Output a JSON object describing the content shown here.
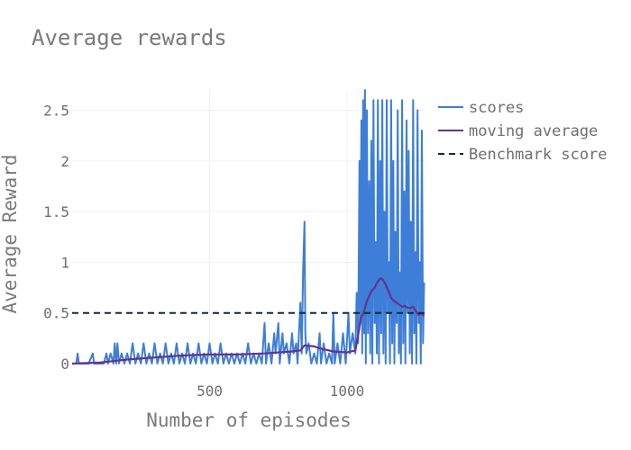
{
  "chart_data": {
    "type": "line",
    "title": "Average rewards",
    "xlabel": "Number of episodes",
    "ylabel": "Average Reward",
    "xlim": [
      0,
      1285
    ],
    "ylim": [
      0,
      2.7
    ],
    "x_ticks": [
      500,
      1000
    ],
    "y_ticks": [
      0,
      0.5,
      1,
      1.5,
      2,
      2.5
    ],
    "y_tick_labels": [
      "0",
      "0.5",
      "1",
      "1.5",
      "2",
      "2.5"
    ],
    "grid": true,
    "legend_position": "top-right",
    "series": [
      {
        "name": "scores",
        "color": "#3d7ed8",
        "style": "solid",
        "points": [
          [
            0,
            0
          ],
          [
            15,
            0
          ],
          [
            20,
            0.1
          ],
          [
            25,
            0
          ],
          [
            60,
            0
          ],
          [
            75,
            0.1
          ],
          [
            80,
            0
          ],
          [
            115,
            0
          ],
          [
            125,
            0.1
          ],
          [
            130,
            0
          ],
          [
            140,
            0.1
          ],
          [
            150,
            0
          ],
          [
            155,
            0.2
          ],
          [
            160,
            0
          ],
          [
            165,
            0.2
          ],
          [
            170,
            0
          ],
          [
            180,
            0.1
          ],
          [
            190,
            0
          ],
          [
            200,
            0.1
          ],
          [
            210,
            0
          ],
          [
            220,
            0.2
          ],
          [
            230,
            0
          ],
          [
            240,
            0.1
          ],
          [
            250,
            0
          ],
          [
            260,
            0.2
          ],
          [
            270,
            0
          ],
          [
            280,
            0.1
          ],
          [
            290,
            0
          ],
          [
            300,
            0.2
          ],
          [
            310,
            0
          ],
          [
            320,
            0.1
          ],
          [
            330,
            0
          ],
          [
            340,
            0.2
          ],
          [
            350,
            0
          ],
          [
            360,
            0.1
          ],
          [
            370,
            0
          ],
          [
            380,
            0.2
          ],
          [
            390,
            0
          ],
          [
            400,
            0.1
          ],
          [
            410,
            0
          ],
          [
            420,
            0.2
          ],
          [
            430,
            0
          ],
          [
            440,
            0.1
          ],
          [
            450,
            0
          ],
          [
            460,
            0.2
          ],
          [
            470,
            0
          ],
          [
            480,
            0.1
          ],
          [
            490,
            0
          ],
          [
            500,
            0.2
          ],
          [
            510,
            0
          ],
          [
            520,
            0.1
          ],
          [
            530,
            0
          ],
          [
            540,
            0.2
          ],
          [
            550,
            0
          ],
          [
            560,
            0.1
          ],
          [
            570,
            0
          ],
          [
            580,
            0.1
          ],
          [
            590,
            0
          ],
          [
            600,
            0.1
          ],
          [
            610,
            0
          ],
          [
            620,
            0.1
          ],
          [
            630,
            0
          ],
          [
            640,
            0.2
          ],
          [
            650,
            0
          ],
          [
            660,
            0.1
          ],
          [
            670,
            0
          ],
          [
            680,
            0.1
          ],
          [
            690,
            0
          ],
          [
            700,
            0.4
          ],
          [
            705,
            0
          ],
          [
            715,
            0.2
          ],
          [
            725,
            0
          ],
          [
            735,
            0.3
          ],
          [
            740,
            0.1
          ],
          [
            750,
            0.4
          ],
          [
            755,
            0
          ],
          [
            765,
            0.3
          ],
          [
            770,
            0.1
          ],
          [
            780,
            0.2
          ],
          [
            790,
            0
          ],
          [
            800,
            0.3
          ],
          [
            805,
            0.1
          ],
          [
            815,
            0.2
          ],
          [
            820,
            0
          ],
          [
            830,
            0.6
          ],
          [
            835,
            0.1
          ],
          [
            840,
            0.9
          ],
          [
            845,
            1.4
          ],
          [
            848,
            0.3
          ],
          [
            852,
            0.1
          ],
          [
            860,
            0.2
          ],
          [
            870,
            0
          ],
          [
            880,
            0.1
          ],
          [
            890,
            0
          ],
          [
            900,
            0.3
          ],
          [
            905,
            0
          ],
          [
            915,
            0.2
          ],
          [
            925,
            0
          ],
          [
            935,
            0.1
          ],
          [
            945,
            0
          ],
          [
            950,
            0.5
          ],
          [
            955,
            0
          ],
          [
            965,
            0.2
          ],
          [
            975,
            0
          ],
          [
            985,
            0.3
          ],
          [
            995,
            0
          ],
          [
            1005,
            0.5
          ],
          [
            1010,
            0.1
          ],
          [
            1020,
            0.3
          ],
          [
            1030,
            0.1
          ],
          [
            1035,
            0.7
          ],
          [
            1040,
            0.2
          ],
          [
            1045,
            2.0
          ],
          [
            1048,
            0.4
          ],
          [
            1052,
            2.4
          ],
          [
            1055,
            0.1
          ],
          [
            1058,
            2.6
          ],
          [
            1062,
            0.3
          ],
          [
            1065,
            2.7
          ],
          [
            1068,
            0
          ],
          [
            1072,
            2.5
          ],
          [
            1076,
            0.3
          ],
          [
            1080,
            1.8
          ],
          [
            1084,
            0.1
          ],
          [
            1088,
            2.2
          ],
          [
            1092,
            0
          ],
          [
            1096,
            2.6
          ],
          [
            1100,
            0.4
          ],
          [
            1104,
            1.2
          ],
          [
            1108,
            0.1
          ],
          [
            1112,
            2.6
          ],
          [
            1116,
            0
          ],
          [
            1120,
            2.0
          ],
          [
            1124,
            0.3
          ],
          [
            1128,
            2.6
          ],
          [
            1132,
            0.1
          ],
          [
            1136,
            1.5
          ],
          [
            1140,
            0
          ],
          [
            1144,
            2.6
          ],
          [
            1148,
            0.5
          ],
          [
            1152,
            1.0
          ],
          [
            1156,
            0
          ],
          [
            1160,
            2.6
          ],
          [
            1164,
            0.2
          ],
          [
            1168,
            2.0
          ],
          [
            1172,
            0
          ],
          [
            1176,
            1.3
          ],
          [
            1180,
            0.4
          ],
          [
            1184,
            2.5
          ],
          [
            1188,
            0.1
          ],
          [
            1192,
            0.9
          ],
          [
            1196,
            0
          ],
          [
            1200,
            2.6
          ],
          [
            1204,
            0.2
          ],
          [
            1208,
            1.7
          ],
          [
            1212,
            0
          ],
          [
            1216,
            2.4
          ],
          [
            1220,
            0.5
          ],
          [
            1224,
            2.1
          ],
          [
            1228,
            0.1
          ],
          [
            1232,
            1.4
          ],
          [
            1236,
            0
          ],
          [
            1240,
            2.6
          ],
          [
            1244,
            0.3
          ],
          [
            1248,
            1.1
          ],
          [
            1252,
            0
          ],
          [
            1256,
            2.5
          ],
          [
            1260,
            0.4
          ],
          [
            1264,
            1.0
          ],
          [
            1268,
            0
          ],
          [
            1272,
            2.3
          ],
          [
            1276,
            0.2
          ],
          [
            1280,
            0.8
          ]
        ]
      },
      {
        "name": "moving average",
        "color": "#6a2f8f",
        "style": "solid",
        "points": [
          [
            0,
            0
          ],
          [
            100,
            0.01
          ],
          [
            200,
            0.04
          ],
          [
            300,
            0.06
          ],
          [
            400,
            0.08
          ],
          [
            500,
            0.09
          ],
          [
            600,
            0.09
          ],
          [
            700,
            0.1
          ],
          [
            800,
            0.12
          ],
          [
            830,
            0.13
          ],
          [
            845,
            0.18
          ],
          [
            880,
            0.17
          ],
          [
            900,
            0.15
          ],
          [
            950,
            0.12
          ],
          [
            1000,
            0.11
          ],
          [
            1030,
            0.13
          ],
          [
            1040,
            0.28
          ],
          [
            1050,
            0.45
          ],
          [
            1060,
            0.5
          ],
          [
            1070,
            0.6
          ],
          [
            1080,
            0.67
          ],
          [
            1090,
            0.72
          ],
          [
            1100,
            0.75
          ],
          [
            1110,
            0.8
          ],
          [
            1120,
            0.84
          ],
          [
            1130,
            0.83
          ],
          [
            1140,
            0.78
          ],
          [
            1150,
            0.72
          ],
          [
            1160,
            0.65
          ],
          [
            1170,
            0.62
          ],
          [
            1180,
            0.6
          ],
          [
            1190,
            0.58
          ],
          [
            1200,
            0.56
          ],
          [
            1210,
            0.57
          ],
          [
            1220,
            0.55
          ],
          [
            1230,
            0.55
          ],
          [
            1240,
            0.56
          ],
          [
            1250,
            0.52
          ],
          [
            1260,
            0.48
          ],
          [
            1270,
            0.5
          ],
          [
            1280,
            0.47
          ]
        ]
      },
      {
        "name": "Benchmark score",
        "color": "#0e2a3b",
        "style": "dashed",
        "points": [
          [
            0,
            0.5
          ],
          [
            1285,
            0.5
          ]
        ]
      }
    ]
  }
}
